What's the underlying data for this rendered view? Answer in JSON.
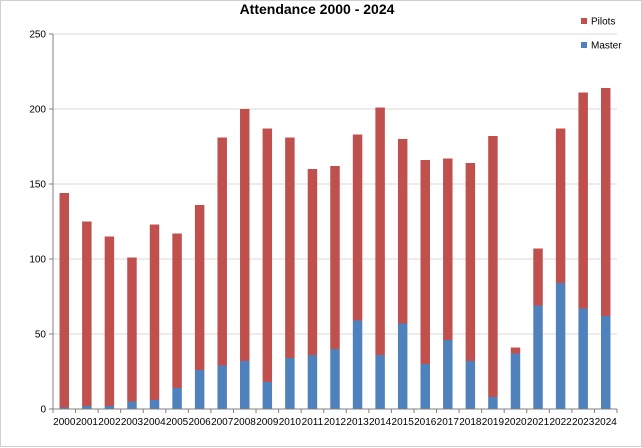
{
  "chart_data": {
    "type": "bar",
    "stacked": true,
    "title": "Attendance  2000 - 2024",
    "xlabel": "",
    "ylabel": "",
    "ylim": [
      0,
      250
    ],
    "yticks": [
      0,
      50,
      100,
      150,
      200,
      250
    ],
    "grid": true,
    "legend_position": "top-right",
    "categories": [
      "2000",
      "2001",
      "2002",
      "2003",
      "2004",
      "2005",
      "2006",
      "2007",
      "2008",
      "2009",
      "2010",
      "2011",
      "2012",
      "2013",
      "2014",
      "2015",
      "2016",
      "2017",
      "2018",
      "2019",
      "2020",
      "2021",
      "2022",
      "2023",
      "2024"
    ],
    "series": [
      {
        "name": "Master",
        "color": "#4f81bd",
        "values": [
          1,
          2,
          2,
          5,
          6,
          14,
          26,
          29,
          32,
          18,
          34,
          36,
          40,
          59,
          36,
          57,
          30,
          46,
          32,
          8,
          37,
          69,
          84,
          67,
          62
        ]
      },
      {
        "name": "Pilots",
        "color": "#c0504d",
        "values": [
          143,
          123,
          113,
          96,
          117,
          103,
          110,
          152,
          168,
          169,
          147,
          124,
          122,
          124,
          165,
          123,
          136,
          121,
          132,
          174,
          4,
          38,
          103,
          144,
          152
        ]
      }
    ],
    "legend_order": [
      "Pilots",
      "Master"
    ]
  }
}
